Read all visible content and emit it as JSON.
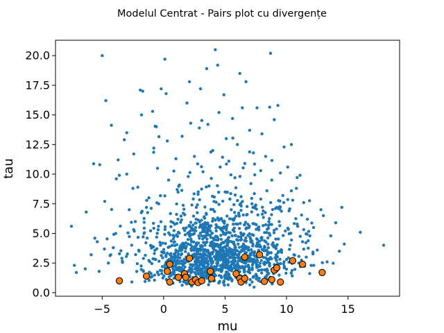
{
  "chart_data": {
    "type": "scatter",
    "title": "Modelul Centrat - Pairs plot cu divergențe",
    "xlabel": "mu",
    "ylabel": "tau",
    "xlim": [
      -8.8,
      19.2
    ],
    "ylim": [
      -0.3,
      21.3
    ],
    "xticks": [
      -5,
      0,
      5,
      10,
      15
    ],
    "yticks": [
      0.0,
      2.5,
      5.0,
      7.5,
      10.0,
      12.5,
      15.0,
      17.5,
      20.0
    ],
    "ytick_labels": [
      "0.0",
      "2.5",
      "5.0",
      "7.5",
      "10.0",
      "12.5",
      "15.0",
      "17.5",
      "20.0"
    ],
    "grid": false,
    "series": [
      {
        "role": "samples",
        "color": "#1f77b4",
        "marker": "dot",
        "approx_count": 1500,
        "points": [
          [
            -7.5,
            5.6
          ],
          [
            -7.1,
            1.7
          ],
          [
            -6.3,
            6.8
          ],
          [
            -5.9,
            3.2
          ],
          [
            -5.6,
            4.6
          ],
          [
            -5.4,
            4.3
          ],
          [
            -5.2,
            10.8
          ],
          [
            -5.0,
            20.0
          ],
          [
            -4.8,
            7.7
          ],
          [
            -4.7,
            16.2
          ],
          [
            -4.5,
            2.5
          ],
          [
            -4.3,
            3.2
          ],
          [
            -4.1,
            3.8
          ],
          [
            -3.9,
            5.0
          ],
          [
            -3.7,
            11.2
          ],
          [
            -3.6,
            9.9
          ],
          [
            -3.4,
            2.9
          ],
          [
            -3.2,
            12.9
          ],
          [
            -3.0,
            10.0
          ],
          [
            -3.0,
            13.5
          ],
          [
            -2.8,
            7.0
          ],
          [
            -2.6,
            4.0
          ],
          [
            -2.5,
            8.8
          ],
          [
            -2.3,
            6.0
          ],
          [
            -2.1,
            8.9
          ],
          [
            -2.0,
            3.5
          ],
          [
            -1.9,
            17.1
          ],
          [
            -1.8,
            15.0
          ],
          [
            -1.7,
            17.0
          ],
          [
            -1.6,
            5.0
          ],
          [
            -1.4,
            7.2
          ],
          [
            -1.2,
            8.0
          ],
          [
            -1.0,
            3.9
          ],
          [
            -0.9,
            15.3
          ],
          [
            -0.8,
            12.2
          ],
          [
            -0.6,
            14.0
          ],
          [
            -0.5,
            10.5
          ],
          [
            -0.4,
            7.5
          ],
          [
            -0.2,
            17.2
          ],
          [
            -0.1,
            2.2
          ],
          [
            0.1,
            19.7
          ],
          [
            0.2,
            16.8
          ],
          [
            0.3,
            12.8
          ],
          [
            0.4,
            9.5
          ],
          [
            0.6,
            6.0
          ],
          [
            0.8,
            3.0
          ],
          [
            1.0,
            11.3
          ],
          [
            1.1,
            8.7
          ],
          [
            1.2,
            5.1
          ],
          [
            1.4,
            2.1
          ],
          [
            1.5,
            13.2
          ],
          [
            1.6,
            6.7
          ],
          [
            1.8,
            4.2
          ],
          [
            1.9,
            16.0
          ],
          [
            2.0,
            9.8
          ],
          [
            2.1,
            17.8
          ],
          [
            2.2,
            14.3
          ],
          [
            2.3,
            7.4
          ],
          [
            2.4,
            3.6
          ],
          [
            2.5,
            11.5
          ],
          [
            2.6,
            5.5
          ],
          [
            2.7,
            2.6
          ],
          [
            2.8,
            8.3
          ],
          [
            2.9,
            13.9
          ],
          [
            3.0,
            17.2
          ],
          [
            3.1,
            4.8
          ],
          [
            3.2,
            10.2
          ],
          [
            3.3,
            6.4
          ],
          [
            3.4,
            2.9
          ],
          [
            3.5,
            18.9
          ],
          [
            3.6,
            14.2
          ],
          [
            3.7,
            9.0
          ],
          [
            3.8,
            5.2
          ],
          [
            3.9,
            1.8
          ],
          [
            4.0,
            12.0
          ],
          [
            4.1,
            7.7
          ],
          [
            4.2,
            20.5
          ],
          [
            4.3,
            3.3
          ],
          [
            4.4,
            19.2
          ],
          [
            4.5,
            15.2
          ],
          [
            4.6,
            10.6
          ],
          [
            4.7,
            6.2
          ],
          [
            4.8,
            2.4
          ],
          [
            4.9,
            16.7
          ],
          [
            5.0,
            8.5
          ],
          [
            5.1,
            13.0
          ],
          [
            5.2,
            4.5
          ],
          [
            5.3,
            11.1
          ],
          [
            5.4,
            2.0
          ],
          [
            5.5,
            7.0
          ],
          [
            5.6,
            14.7
          ],
          [
            5.7,
            3.6
          ],
          [
            5.8,
            9.7
          ],
          [
            5.9,
            5.8
          ],
          [
            6.0,
            12.5
          ],
          [
            6.1,
            2.7
          ],
          [
            6.2,
            18.5
          ],
          [
            6.3,
            8.1
          ],
          [
            6.4,
            15.6
          ],
          [
            6.5,
            4.1
          ],
          [
            6.6,
            10.9
          ],
          [
            6.7,
            17.8
          ],
          [
            6.8,
            6.6
          ],
          [
            6.9,
            2.2
          ],
          [
            7.0,
            13.7
          ],
          [
            7.1,
            9.2
          ],
          [
            7.2,
            4.9
          ],
          [
            7.3,
            11.8
          ],
          [
            7.4,
            3.1
          ],
          [
            7.5,
            7.4
          ],
          [
            7.6,
            15.6
          ],
          [
            7.7,
            5.5
          ],
          [
            7.8,
            1.9
          ],
          [
            7.9,
            10.3
          ],
          [
            8.0,
            13.4
          ],
          [
            8.1,
            6.9
          ],
          [
            8.2,
            3.8
          ],
          [
            8.3,
            11.5
          ],
          [
            8.4,
            8.6
          ],
          [
            8.5,
            2.6
          ],
          [
            8.6,
            5.0
          ],
          [
            8.7,
            20.2
          ],
          [
            8.8,
            9.5
          ],
          [
            8.9,
            4.2
          ],
          [
            9.0,
            14.6
          ],
          [
            9.1,
            7.1
          ],
          [
            9.2,
            2.1
          ],
          [
            9.3,
            15.8
          ],
          [
            9.4,
            6.0
          ],
          [
            9.5,
            10.1
          ],
          [
            9.6,
            3.4
          ],
          [
            9.7,
            8.2
          ],
          [
            9.8,
            12.3
          ],
          [
            9.9,
            5.2
          ],
          [
            10.0,
            2.8
          ],
          [
            10.1,
            10.6
          ],
          [
            10.2,
            6.9
          ],
          [
            10.3,
            4.0
          ],
          [
            10.4,
            12.5
          ],
          [
            10.5,
            7.8
          ],
          [
            10.6,
            3.2
          ],
          [
            10.8,
            8.8
          ],
          [
            10.9,
            5.6
          ],
          [
            11.0,
            2.5
          ],
          [
            11.1,
            9.9
          ],
          [
            11.3,
            4.3
          ],
          [
            11.4,
            7.6
          ],
          [
            11.6,
            3.0
          ],
          [
            11.7,
            6.2
          ],
          [
            11.9,
            4.8
          ],
          [
            12.0,
            2.3
          ],
          [
            12.2,
            5.5
          ],
          [
            12.5,
            3.6
          ],
          [
            12.8,
            7.0
          ],
          [
            13.0,
            6.5
          ],
          [
            13.3,
            2.6
          ],
          [
            13.6,
            4.8
          ],
          [
            14.0,
            5.9
          ],
          [
            14.3,
            3.5
          ],
          [
            14.5,
            7.2
          ],
          [
            14.7,
            4.1
          ],
          [
            16.0,
            5.1
          ],
          [
            17.9,
            4.0
          ]
        ]
      },
      {
        "role": "divergences",
        "color": "#ff7f0e",
        "edgecolor": "#000000",
        "marker": "circle",
        "points": [
          [
            -3.6,
            1.0
          ],
          [
            -1.4,
            1.4
          ],
          [
            0.3,
            1.8
          ],
          [
            0.5,
            2.4
          ],
          [
            0.5,
            0.9
          ],
          [
            1.2,
            1.3
          ],
          [
            1.7,
            1.6
          ],
          [
            1.8,
            1.3
          ],
          [
            2.1,
            2.9
          ],
          [
            2.3,
            0.9
          ],
          [
            2.6,
            1.1
          ],
          [
            2.8,
            0.85
          ],
          [
            3.1,
            1.0
          ],
          [
            3.8,
            1.8
          ],
          [
            3.9,
            1.2
          ],
          [
            5.9,
            1.6
          ],
          [
            6.2,
            1.2
          ],
          [
            6.3,
            0.9
          ],
          [
            6.6,
            1.2
          ],
          [
            6.6,
            3.0
          ],
          [
            7.8,
            3.2
          ],
          [
            8.2,
            0.95
          ],
          [
            8.8,
            1.1
          ],
          [
            9.0,
            1.9
          ],
          [
            9.2,
            2.1
          ],
          [
            9.5,
            0.9
          ],
          [
            10.5,
            2.7
          ],
          [
            11.3,
            2.4
          ],
          [
            12.9,
            1.7
          ]
        ]
      }
    ]
  }
}
